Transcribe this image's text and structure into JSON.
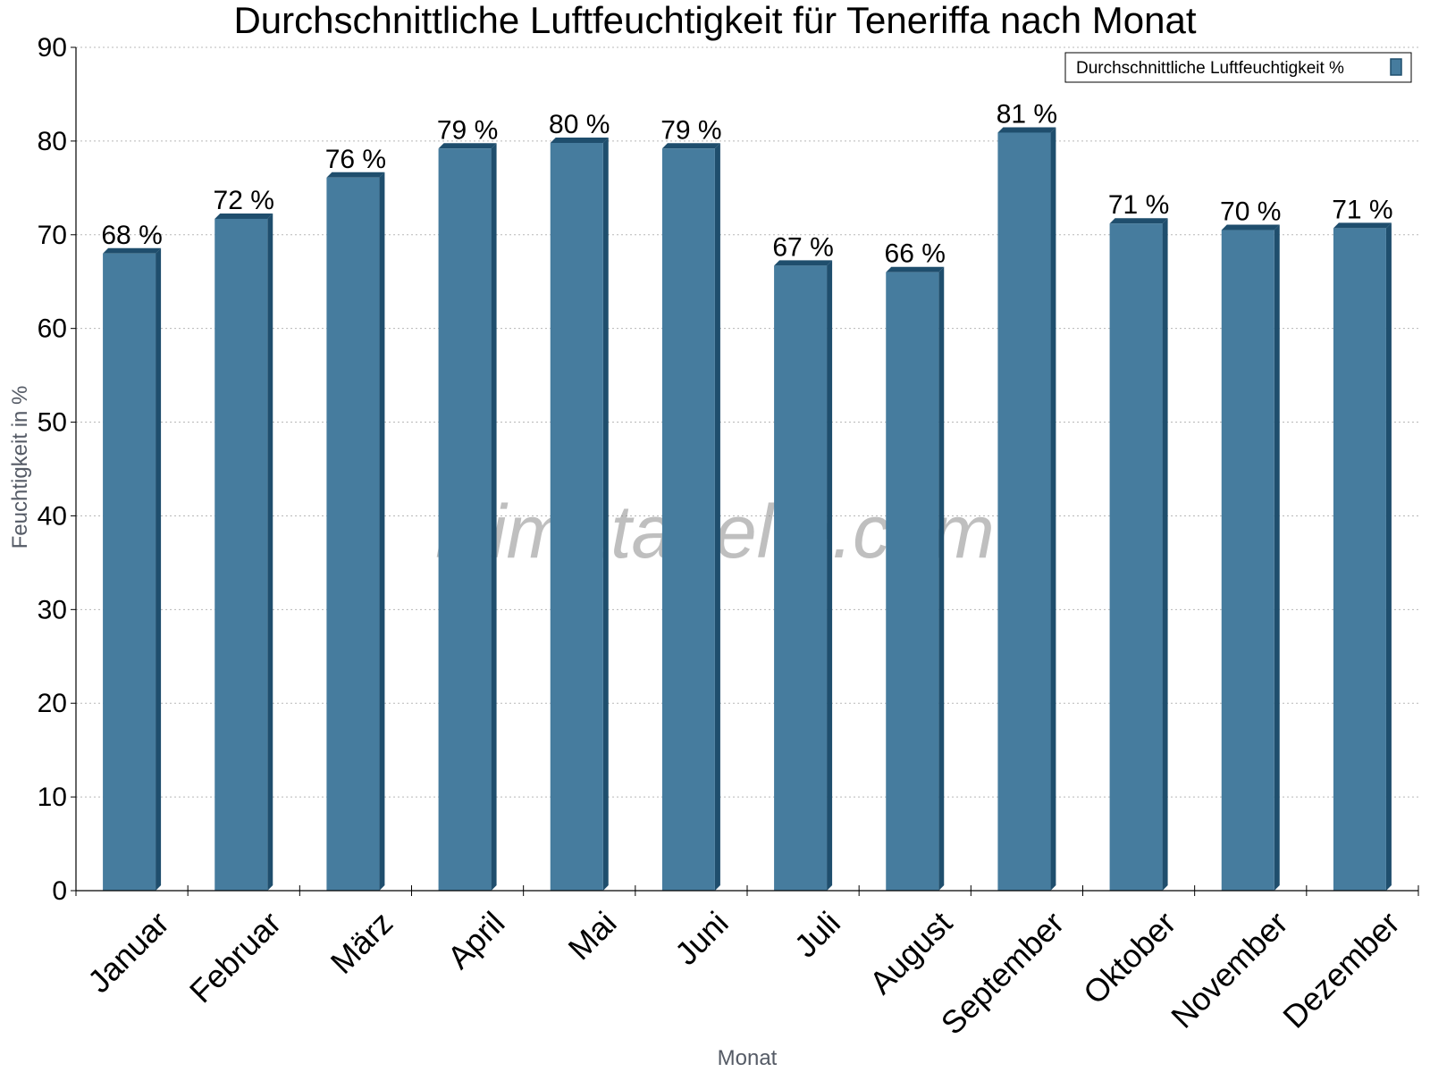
{
  "chart_data": {
    "type": "bar",
    "title": "Durchschnittliche Luftfeuchtigkeit für Teneriffa nach Monat",
    "xlabel": "Monat",
    "ylabel": "Feuchtigkeit in %",
    "ylim": [
      0,
      90
    ],
    "yticks": [
      0,
      10,
      20,
      30,
      40,
      50,
      60,
      70,
      80,
      90
    ],
    "grid": true,
    "legend_position": "top-right",
    "categories": [
      "Januar",
      "Februar",
      "März",
      "April",
      "Mai",
      "Juni",
      "Juli",
      "August",
      "September",
      "Oktober",
      "November",
      "Dezember"
    ],
    "series": [
      {
        "name": "Durchschnittliche Luftfeuchtigkeit %",
        "values": [
          68,
          71.7,
          76.1,
          79.2,
          79.8,
          79.2,
          66.7,
          66.0,
          80.9,
          71.2,
          70.5,
          70.7
        ],
        "labels": [
          "68 %",
          "72 %",
          "76 %",
          "79 %",
          "80 %",
          "79 %",
          "67 %",
          "66 %",
          "81 %",
          "71 %",
          "70 %",
          "71 %"
        ],
        "color": "#467c9e",
        "side_color": "#1f4e6d"
      }
    ],
    "watermark": "klimatabelle.com"
  }
}
